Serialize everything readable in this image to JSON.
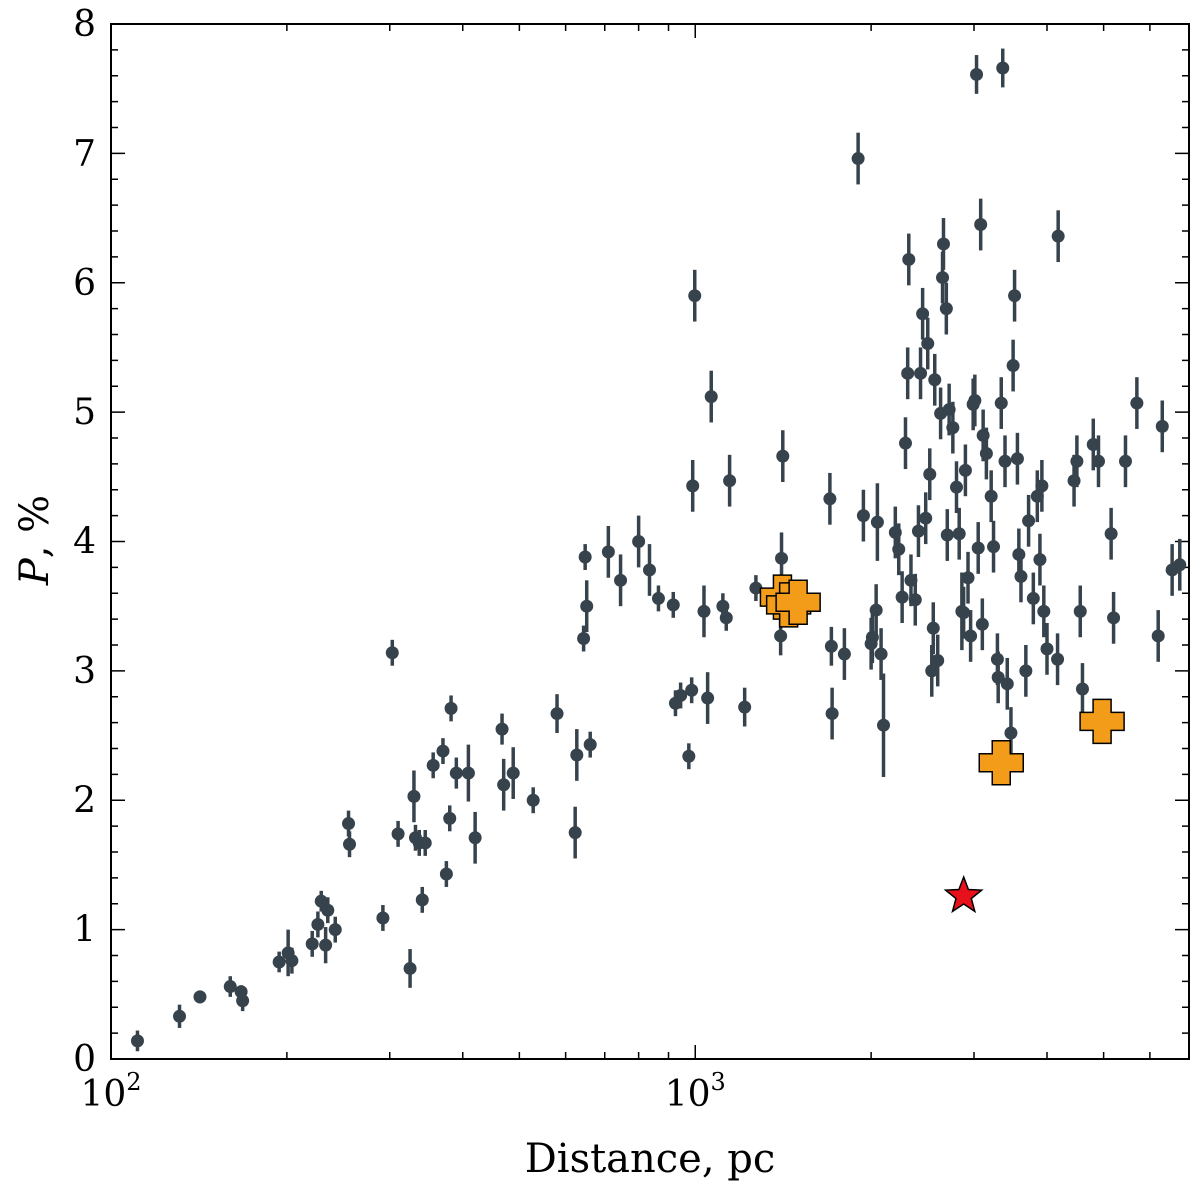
{
  "chart_data": {
    "type": "scatter",
    "title": "",
    "xlabel": "Distance, pc",
    "ylabel_symbol": "P",
    "ylabel_unit": ", %",
    "xscale": "log",
    "xlim": [
      100,
      7000
    ],
    "ylim": [
      0,
      8
    ],
    "xticks": [
      {
        "value": 100,
        "base": "10",
        "exp": "2"
      },
      {
        "value": 1000,
        "base": "10",
        "exp": "3"
      }
    ],
    "yticks": [
      "0",
      "1",
      "2",
      "3",
      "4",
      "5",
      "6",
      "7",
      "8"
    ],
    "colors": {
      "stars": "#37434c",
      "clusters": "#f39c1a",
      "target": "#e8101a"
    },
    "series": [
      {
        "name": "",
        "marker": "circle",
        "points": [
          [
            111,
            0.14,
            0.08
          ],
          [
            131,
            0.33,
            0.09
          ],
          [
            142,
            0.48,
            0.05
          ],
          [
            160,
            0.56,
            0.08
          ],
          [
            167,
            0.52,
            0.05
          ],
          [
            168,
            0.45,
            0.08
          ],
          [
            194,
            0.75,
            0.08
          ],
          [
            201,
            0.82,
            0.18
          ],
          [
            204,
            0.76,
            0.1
          ],
          [
            221,
            0.89,
            0.1
          ],
          [
            226,
            1.04,
            0.1
          ],
          [
            229,
            1.22,
            0.08
          ],
          [
            233,
            0.88,
            0.14
          ],
          [
            235,
            1.15,
            0.1
          ],
          [
            242,
            1.0,
            0.1
          ],
          [
            255,
            1.82,
            0.1
          ],
          [
            256,
            1.66,
            0.1
          ],
          [
            292,
            1.09,
            0.1
          ],
          [
            303,
            3.14,
            0.1
          ],
          [
            310,
            1.74,
            0.1
          ],
          [
            325,
            0.7,
            0.15
          ],
          [
            330,
            2.03,
            0.2
          ],
          [
            332,
            1.71,
            0.1
          ],
          [
            337,
            1.67,
            0.1
          ],
          [
            341,
            1.23,
            0.1
          ],
          [
            345,
            1.67,
            0.1
          ],
          [
            356,
            2.27,
            0.1
          ],
          [
            370,
            2.38,
            0.1
          ],
          [
            375,
            1.43,
            0.1
          ],
          [
            380,
            1.86,
            0.1
          ],
          [
            382,
            2.71,
            0.1
          ],
          [
            390,
            2.21,
            0.12
          ],
          [
            409,
            2.21,
            0.22
          ],
          [
            420,
            1.71,
            0.2
          ],
          [
            467,
            2.55,
            0.12
          ],
          [
            470,
            2.12,
            0.2
          ],
          [
            488,
            2.21,
            0.2
          ],
          [
            528,
            2.0,
            0.1
          ],
          [
            580,
            2.67,
            0.15
          ],
          [
            623,
            1.75,
            0.2
          ],
          [
            627,
            2.35,
            0.2
          ],
          [
            644,
            3.25,
            0.1
          ],
          [
            648,
            3.88,
            0.1
          ],
          [
            652,
            3.5,
            0.2
          ],
          [
            661,
            2.43,
            0.1
          ],
          [
            710,
            3.92,
            0.2
          ],
          [
            745,
            3.7,
            0.2
          ],
          [
            800,
            4.0,
            0.2
          ],
          [
            835,
            3.78,
            0.2
          ],
          [
            865,
            3.56,
            0.1
          ],
          [
            917,
            3.51,
            0.1
          ],
          [
            925,
            2.75,
            0.1
          ],
          [
            944,
            2.81,
            0.1
          ],
          [
            975,
            2.34,
            0.1
          ],
          [
            986,
            2.85,
            0.1
          ],
          [
            990,
            4.43,
            0.2
          ],
          [
            998,
            5.9,
            0.2
          ],
          [
            1035,
            3.46,
            0.2
          ],
          [
            1050,
            2.79,
            0.2
          ],
          [
            1065,
            5.12,
            0.2
          ],
          [
            1115,
            3.5,
            0.1
          ],
          [
            1130,
            3.41,
            0.1
          ],
          [
            1145,
            4.47,
            0.2
          ],
          [
            1215,
            2.72,
            0.15
          ],
          [
            1270,
            3.64,
            0.1
          ],
          [
            1400,
            3.27,
            0.15
          ],
          [
            1405,
            3.87,
            0.2
          ],
          [
            1412,
            4.66,
            0.2
          ],
          [
            1700,
            4.33,
            0.2
          ],
          [
            1710,
            3.19,
            0.15
          ],
          [
            1715,
            2.67,
            0.2
          ],
          [
            1800,
            3.13,
            0.2
          ],
          [
            1900,
            6.96,
            0.2
          ],
          [
            1940,
            4.2,
            0.2
          ],
          [
            2000,
            3.21,
            0.2
          ],
          [
            2010,
            3.26,
            0.2
          ],
          [
            2040,
            3.47,
            0.2
          ],
          [
            2050,
            4.15,
            0.3
          ],
          [
            2080,
            3.13,
            0.2
          ],
          [
            2100,
            2.58,
            0.4
          ],
          [
            2200,
            4.07,
            0.2
          ],
          [
            2230,
            3.94,
            0.2
          ],
          [
            2260,
            3.57,
            0.2
          ],
          [
            2290,
            4.76,
            0.2
          ],
          [
            2310,
            5.3,
            0.2
          ],
          [
            2320,
            6.18,
            0.2
          ],
          [
            2340,
            3.7,
            0.2
          ],
          [
            2380,
            3.55,
            0.2
          ],
          [
            2410,
            4.08,
            0.2
          ],
          [
            2430,
            5.3,
            0.2
          ],
          [
            2450,
            5.76,
            0.2
          ],
          [
            2480,
            4.18,
            0.2
          ],
          [
            2500,
            5.53,
            0.2
          ],
          [
            2520,
            4.52,
            0.2
          ],
          [
            2540,
            3.0,
            0.2
          ],
          [
            2555,
            3.33,
            0.2
          ],
          [
            2570,
            5.25,
            0.2
          ],
          [
            2600,
            3.08,
            0.2
          ],
          [
            2630,
            4.99,
            0.2
          ],
          [
            2650,
            6.04,
            0.2
          ],
          [
            2660,
            6.3,
            0.2
          ],
          [
            2690,
            5.8,
            0.2
          ],
          [
            2700,
            4.05,
            0.2
          ],
          [
            2720,
            5.02,
            0.2
          ],
          [
            2760,
            4.88,
            0.2
          ],
          [
            2800,
            4.42,
            0.2
          ],
          [
            2830,
            4.06,
            0.2
          ],
          [
            2860,
            3.46,
            0.3
          ],
          [
            2880,
            3.45,
            0.2
          ],
          [
            2900,
            4.55,
            0.2
          ],
          [
            2930,
            3.72,
            0.2
          ],
          [
            2960,
            3.27,
            0.2
          ],
          [
            2990,
            5.06,
            0.2
          ],
          [
            3010,
            5.09,
            0.2
          ],
          [
            3030,
            7.61,
            0.15
          ],
          [
            3050,
            3.95,
            0.2
          ],
          [
            3080,
            6.45,
            0.2
          ],
          [
            3100,
            3.36,
            0.2
          ],
          [
            3110,
            4.82,
            0.2
          ],
          [
            3150,
            4.68,
            0.2
          ],
          [
            3210,
            4.35,
            0.2
          ],
          [
            3240,
            3.96,
            0.2
          ],
          [
            3290,
            3.09,
            0.2
          ],
          [
            3300,
            2.95,
            0.2
          ],
          [
            3340,
            5.07,
            0.2
          ],
          [
            3360,
            7.66,
            0.15
          ],
          [
            3390,
            4.62,
            0.2
          ],
          [
            3420,
            2.9,
            0.2
          ],
          [
            3470,
            2.52,
            0.2
          ],
          [
            3500,
            5.36,
            0.2
          ],
          [
            3520,
            5.9,
            0.2
          ],
          [
            3560,
            4.64,
            0.2
          ],
          [
            3580,
            3.9,
            0.2
          ],
          [
            3610,
            3.73,
            0.2
          ],
          [
            3680,
            3.0,
            0.2
          ],
          [
            3720,
            4.16,
            0.2
          ],
          [
            3790,
            3.56,
            0.2
          ],
          [
            3850,
            4.35,
            0.2
          ],
          [
            3890,
            3.86,
            0.2
          ],
          [
            3920,
            4.43,
            0.2
          ],
          [
            3950,
            3.46,
            0.2
          ],
          [
            4000,
            3.17,
            0.2
          ],
          [
            4180,
            6.36,
            0.2
          ],
          [
            4170,
            3.09,
            0.2
          ],
          [
            4450,
            4.47,
            0.2
          ],
          [
            4500,
            4.62,
            0.2
          ],
          [
            4560,
            3.46,
            0.2
          ],
          [
            4600,
            2.86,
            0.2
          ],
          [
            4800,
            4.75,
            0.2
          ],
          [
            4900,
            4.62,
            0.2
          ],
          [
            5150,
            4.06,
            0.2
          ],
          [
            5200,
            3.41,
            0.2
          ],
          [
            5450,
            4.62,
            0.2
          ],
          [
            5700,
            5.07,
            0.2
          ],
          [
            6200,
            3.27,
            0.2
          ],
          [
            6300,
            4.89,
            0.2
          ],
          [
            6550,
            3.78,
            0.2
          ],
          [
            6750,
            3.82,
            0.2
          ]
        ]
      },
      {
        "name": "",
        "marker": "cross",
        "points": [
          [
            1410,
            3.57
          ],
          [
            1445,
            3.51
          ],
          [
            1500,
            3.53
          ],
          [
            3340,
            2.29
          ],
          [
            4970,
            2.61
          ]
        ]
      },
      {
        "name": "",
        "marker": "star",
        "points": [
          [
            2880,
            1.26
          ]
        ]
      }
    ]
  }
}
